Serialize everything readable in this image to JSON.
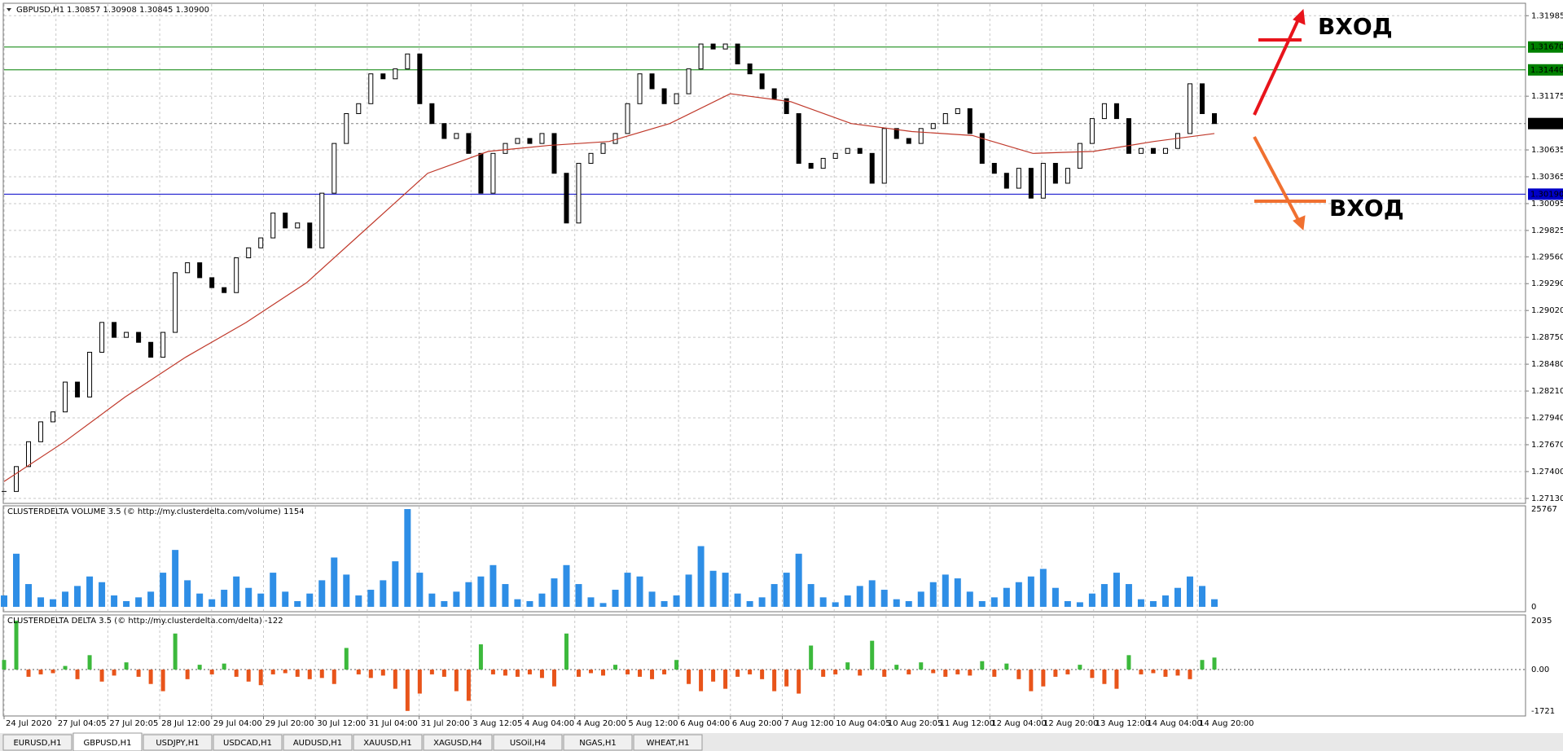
{
  "header": {
    "symbol": "GBPUSD,H1",
    "ohlc": "1.30857 1.30908 1.30845 1.30900"
  },
  "price_axis": {
    "ylim": [
      1.2708,
      1.3211
    ],
    "ticks": [
      1.31985,
      1.31175,
      1.30635,
      1.30365,
      1.30095,
      1.29825,
      {
        "value": 1.2956,
        "label": "1.29560"
      },
      {
        "value": 1.2929,
        "label": "1.29290"
      },
      {
        "value": 1.2902,
        "label": "1.29020"
      },
      {
        "value": 1.2875,
        "label": "1.28750"
      },
      {
        "value": 1.2848,
        "label": "1.28480"
      },
      {
        "value": 1.2821,
        "label": "1.28210"
      },
      {
        "value": 1.2794,
        "label": "1.27940"
      },
      {
        "value": 1.2767,
        "label": "1.27670"
      },
      {
        "value": 1.274,
        "label": "1.27400"
      },
      {
        "value": 1.2713,
        "label": "1.27130"
      }
    ]
  },
  "levels": [
    {
      "value": 1.3167,
      "label": "1.31670",
      "color": "#008000",
      "dashed": false
    },
    {
      "value": 1.3144,
      "label": "1.31440",
      "color": "#008000",
      "dashed": false
    },
    {
      "value": 1.309,
      "label": "1.30900",
      "color": "#000000",
      "dashed": true
    },
    {
      "value": 1.3019,
      "label": "1.30190",
      "color": "#0000c8",
      "dashed": false
    }
  ],
  "candles": {
    "bull_color": "#ffffff",
    "bear_color": "#000000",
    "close": [
      1.272,
      1.2745,
      1.277,
      1.279,
      1.28,
      1.283,
      1.2815,
      1.286,
      1.289,
      1.2875,
      1.288,
      1.287,
      1.2855,
      1.288,
      1.294,
      1.295,
      1.2935,
      1.2925,
      1.292,
      1.2955,
      1.2965,
      1.2975,
      1.3,
      1.2985,
      1.299,
      1.2965,
      1.302,
      1.307,
      1.31,
      1.311,
      1.314,
      1.3135,
      1.3145,
      1.316,
      1.311,
      1.309,
      1.3075,
      1.308,
      1.306,
      1.302,
      1.306,
      1.307,
      1.3075,
      1.307,
      1.308,
      1.304,
      1.299,
      1.305,
      1.306,
      1.307,
      1.308,
      1.311,
      1.314,
      1.3125,
      1.311,
      1.312,
      1.3145,
      1.317,
      1.3165,
      1.317,
      1.315,
      1.314,
      1.3125,
      1.3115,
      1.31,
      1.305,
      1.3045,
      1.3055,
      1.306,
      1.3065,
      1.306,
      1.303,
      1.3085,
      1.3075,
      1.307,
      1.3085,
      1.309,
      1.31,
      1.3105,
      1.308,
      1.305,
      1.304,
      1.3025,
      1.3045,
      1.3015,
      1.305,
      1.303,
      1.3045,
      1.307,
      1.3095,
      1.311,
      1.3095,
      1.306,
      1.3065,
      1.306,
      1.3065,
      1.308,
      1.313,
      1.31,
      1.309
    ]
  },
  "ma": {
    "color": "#c0392b",
    "values": [
      1.273,
      1.277,
      1.2815,
      1.2855,
      1.289,
      1.293,
      1.2985,
      1.304,
      1.3062,
      1.3068,
      1.3072,
      1.309,
      1.312,
      1.3112,
      1.309,
      1.3082,
      1.3078,
      1.306,
      1.3062,
      1.3072,
      1.308
    ]
  },
  "volume_panel": {
    "label": "CLUSTERDELTA VOLUME 3.5 (© http://my.clusterdelta.com/volume) 1154",
    "color": "#2e8ee6",
    "ylim": [
      0,
      25767
    ],
    "ticks": [
      25767,
      0
    ],
    "values": [
      3000,
      14000,
      6000,
      2500,
      2000,
      4000,
      5500,
      8000,
      6500,
      3000,
      1500,
      2500,
      4000,
      9000,
      15000,
      7000,
      3500,
      2000,
      4500,
      8000,
      5000,
      3500,
      9000,
      4000,
      1500,
      3500,
      7000,
      13000,
      8500,
      3000,
      4500,
      7000,
      12000,
      25767,
      9000,
      3500,
      1500,
      4000,
      6500,
      8000,
      11000,
      6000,
      2000,
      1500,
      3500,
      7500,
      11000,
      6000,
      2500,
      1000,
      4500,
      9000,
      8000,
      4000,
      1500,
      3000,
      8500,
      16000,
      9500,
      9000,
      3500,
      1500,
      2500,
      6000,
      9000,
      14000,
      6000,
      2500,
      1200,
      3000,
      5500,
      7000,
      4500,
      2000,
      1500,
      4000,
      6500,
      8500,
      7500,
      4000,
      1500,
      2500,
      5000,
      6500,
      8000,
      10000,
      5000,
      1500,
      1200,
      3500,
      6000,
      9000,
      6000,
      2000,
      1500,
      3000,
      5000,
      8000,
      5500,
      2000
    ]
  },
  "delta_panel": {
    "label": "CLUSTERDELTA DELTA 3.5 (© http://my.clusterdelta.com/delta) -122",
    "up_color": "#3cb93c",
    "down_color": "#e8541a",
    "ylim": [
      -1721,
      2035
    ],
    "ticks": [
      2035,
      {
        "value": 0,
        "label": "0.00"
      },
      -1721
    ],
    "values": [
      400,
      2035,
      -300,
      -200,
      -150,
      150,
      -400,
      600,
      -500,
      -250,
      300,
      -300,
      -600,
      -900,
      1500,
      -400,
      200,
      -200,
      250,
      -300,
      -500,
      -650,
      -200,
      -150,
      -300,
      -400,
      -350,
      -600,
      900,
      -200,
      -350,
      -250,
      -800,
      -1721,
      -1000,
      -200,
      -300,
      -900,
      -1300,
      1050,
      -200,
      -250,
      -300,
      -200,
      -350,
      -700,
      1500,
      -300,
      -150,
      -250,
      200,
      -200,
      -300,
      -400,
      -200,
      400,
      -600,
      -900,
      -500,
      -800,
      -300,
      -200,
      -400,
      -900,
      -700,
      -1000,
      1000,
      -300,
      -200,
      300,
      -250,
      1200,
      -300,
      200,
      -200,
      300,
      -150,
      -300,
      -200,
      -250,
      350,
      -300,
      250,
      -400,
      -900,
      -700,
      -300,
      -200,
      200,
      -350,
      -600,
      -800,
      600,
      -200,
      -150,
      -300,
      -250,
      -400,
      400,
      500
    ]
  },
  "time_axis": {
    "labels": [
      "24 Jul 2020",
      "27 Jul 04:05",
      "27 Jul 20:05",
      "28 Jul 12:00",
      "29 Jul 04:00",
      "29 Jul 20:00",
      "30 Jul 12:00",
      "31 Jul 04:00",
      "31 Jul 20:00",
      "3 Aug 12:05",
      "4 Aug 04:00",
      "4 Aug 20:00",
      "5 Aug 12:00",
      "6 Aug 04:00",
      "6 Aug 20:00",
      "7 Aug 12:00",
      "10 Aug 04:05",
      "10 Aug 20:05",
      "11 Aug 12:00",
      "12 Aug 04:00",
      "12 Aug 20:00",
      "13 Aug 12:00",
      "14 Aug 04:00",
      "14 Aug 20:00"
    ]
  },
  "tabs": {
    "active": 1,
    "labels": [
      "EURUSD,H1",
      "GBPUSD,H1",
      "USDJPY,H1",
      "USDCAD,H1",
      "AUDUSD,H1",
      "XAUUSD,H1",
      "XAGUSD,H4",
      "USOil,H4",
      "NGAS,H1",
      "WHEAT,H1"
    ]
  },
  "annotations": [
    {
      "text": "ВХОД",
      "color": "#e8141b"
    },
    {
      "text": "ВХОД",
      "color": "#f07030"
    }
  ]
}
